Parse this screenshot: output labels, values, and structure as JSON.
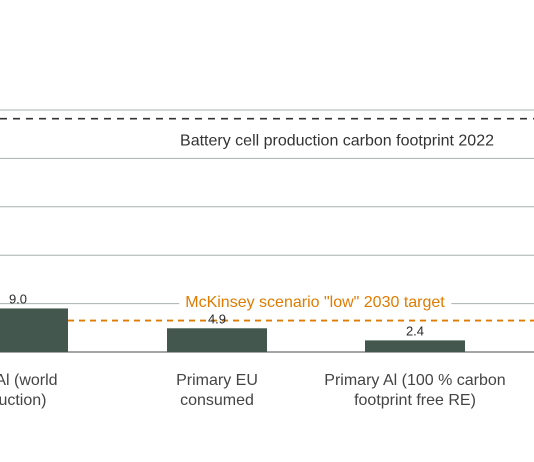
{
  "chart_data": {
    "type": "bar",
    "categories": [
      [
        "ry Al (world",
        "duction)"
      ],
      [
        "Primary EU",
        "consumed"
      ],
      [
        "Primary Al (100 % carbon",
        "footprint free RE)"
      ]
    ],
    "values": [
      9.0,
      4.9,
      2.4
    ],
    "value_labels": [
      "9.0",
      "4.9",
      "2.4"
    ],
    "ylim": [
      0,
      50
    ],
    "grid": true,
    "reference_lines": [
      {
        "label": "Battery cell production carbon footprint 2022",
        "value": 48.2,
        "color": "#333333"
      },
      {
        "label": "McKinsey scenario \"low\" 2030 target",
        "value": 6.5,
        "color": "#e07b00"
      }
    ],
    "colors": {
      "bar": "#44574f",
      "grid": "#a9b3b0",
      "axis": "#6b716f",
      "target": "#e07b00",
      "text": "#333333"
    }
  }
}
